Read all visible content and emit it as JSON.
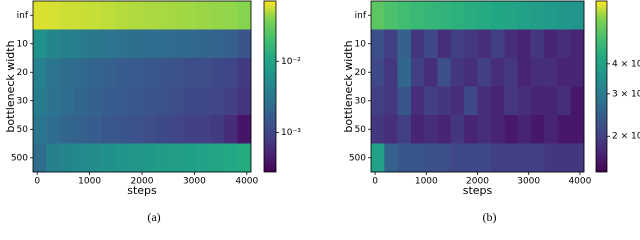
{
  "chart_data": [
    {
      "type": "heatmap",
      "xlabel": "steps",
      "ylabel": "bottleneck width",
      "caption": "(a)",
      "categories": [
        "inf",
        "10",
        "20",
        "30",
        "50",
        "500"
      ],
      "x_edges": [
        -80,
        180,
        440,
        700,
        960,
        1220,
        1480,
        1740,
        2000,
        2260,
        2520,
        2780,
        3040,
        3300,
        3560,
        3820,
        4080
      ],
      "xlim": [
        -80,
        4080
      ],
      "xticks": [
        0,
        1000,
        2000,
        3000,
        4000
      ],
      "colormap": "viridis",
      "color_scale": "log",
      "clim": [
        0.00028,
        0.07
      ],
      "cticks": [
        {
          "value": 0.01,
          "label": "10⁻²"
        },
        {
          "value": 0.001,
          "label": "10⁻³"
        }
      ],
      "values": [
        [
          0.06,
          0.058,
          0.056,
          0.055,
          0.054,
          0.052,
          0.05,
          0.049,
          0.048,
          0.047,
          0.046,
          0.045,
          0.044,
          0.043,
          0.042,
          0.04
        ],
        [
          0.006,
          0.0045,
          0.004,
          0.0035,
          0.0032,
          0.003,
          0.0028,
          0.0026,
          0.0025,
          0.0024,
          0.0023,
          0.0022,
          0.0021,
          0.002,
          0.0018,
          0.0014
        ],
        [
          0.004,
          0.003,
          0.0026,
          0.0023,
          0.002,
          0.0019,
          0.0017,
          0.0016,
          0.0015,
          0.0014,
          0.0013,
          0.0012,
          0.0012,
          0.0011,
          0.001,
          0.0008
        ],
        [
          0.0035,
          0.0028,
          0.0024,
          0.0021,
          0.0019,
          0.0017,
          0.0016,
          0.0015,
          0.0014,
          0.0013,
          0.0012,
          0.0011,
          0.0011,
          0.001,
          0.0009,
          0.0007
        ],
        [
          0.003,
          0.0025,
          0.0021,
          0.0019,
          0.0017,
          0.0015,
          0.0014,
          0.0013,
          0.0012,
          0.0011,
          0.001,
          0.0009,
          0.0009,
          0.0008,
          0.0006,
          0.0004
        ],
        [
          0.0025,
          0.004,
          0.0045,
          0.005,
          0.0055,
          0.006,
          0.0065,
          0.007,
          0.0075,
          0.008,
          0.0085,
          0.009,
          0.0095,
          0.01,
          0.011,
          0.012
        ]
      ]
    },
    {
      "type": "heatmap",
      "xlabel": "steps",
      "ylabel": "bottleneck width",
      "caption": "(b)",
      "categories": [
        "inf",
        "10",
        "20",
        "30",
        "50",
        "500"
      ],
      "x_edges": [
        -80,
        180,
        440,
        700,
        960,
        1220,
        1480,
        1740,
        2000,
        2260,
        2520,
        2780,
        3040,
        3300,
        3560,
        3820,
        4080
      ],
      "xlim": [
        -80,
        4080
      ],
      "xticks": [
        0,
        1000,
        2000,
        3000,
        4000
      ],
      "colormap": "viridis",
      "color_scale": "log",
      "clim": [
        0.0142,
        0.073
      ],
      "cticks": [
        {
          "value": 0.04,
          "label": "4 × 10⁻²"
        },
        {
          "value": 0.03,
          "label": "3 × 10⁻²"
        },
        {
          "value": 0.02,
          "label": "2 × 10⁻²"
        }
      ],
      "values": [
        [
          0.055,
          0.052,
          0.05,
          0.048,
          0.047,
          0.046,
          0.045,
          0.044,
          0.043,
          0.042,
          0.041,
          0.04,
          0.039,
          0.038,
          0.037,
          0.036
        ],
        [
          0.022,
          0.02,
          0.025,
          0.019,
          0.021,
          0.018,
          0.02,
          0.019,
          0.018,
          0.02,
          0.018,
          0.017,
          0.019,
          0.017,
          0.018,
          0.017
        ],
        [
          0.021,
          0.019,
          0.026,
          0.02,
          0.018,
          0.022,
          0.019,
          0.018,
          0.02,
          0.018,
          0.019,
          0.017,
          0.018,
          0.018,
          0.017,
          0.017
        ],
        [
          0.02,
          0.019,
          0.023,
          0.018,
          0.02,
          0.019,
          0.018,
          0.021,
          0.018,
          0.017,
          0.019,
          0.018,
          0.017,
          0.017,
          0.018,
          0.016
        ],
        [
          0.019,
          0.018,
          0.02,
          0.017,
          0.018,
          0.017,
          0.019,
          0.017,
          0.018,
          0.017,
          0.016,
          0.017,
          0.016,
          0.017,
          0.016,
          0.016
        ],
        [
          0.04,
          0.025,
          0.023,
          0.023,
          0.022,
          0.022,
          0.021,
          0.021,
          0.021,
          0.02,
          0.02,
          0.02,
          0.02,
          0.019,
          0.019,
          0.019
        ]
      ]
    }
  ]
}
